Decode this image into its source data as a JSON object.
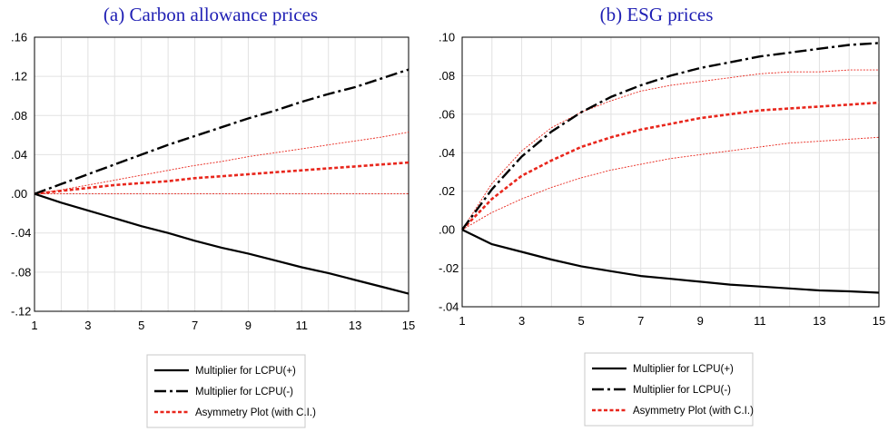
{
  "colors": {
    "title": "#1f1fb4",
    "multiplier_pos": "#000000",
    "multiplier_neg": "#000000",
    "asymmetry": "#e8261c",
    "ci": "#e8261c",
    "grid": "#e2e2e2"
  },
  "chart_data": [
    {
      "type": "line",
      "title": "(a) Carbon allowance prices",
      "x": [
        1,
        2,
        3,
        4,
        5,
        6,
        7,
        8,
        9,
        10,
        11,
        12,
        13,
        14,
        15
      ],
      "x_ticks": [
        1,
        3,
        5,
        7,
        9,
        11,
        13,
        15
      ],
      "x_tick_labels": [
        "1",
        "3",
        "5",
        "7",
        "9",
        "11",
        "13",
        "15"
      ],
      "xlim": [
        1,
        15
      ],
      "y_ticks": [
        -0.12,
        -0.08,
        -0.04,
        0.0,
        0.04,
        0.08,
        0.12,
        0.16
      ],
      "y_tick_labels": [
        "-.12",
        "-.08",
        "-.04",
        ".00",
        ".04",
        ".08",
        ".12",
        ".16"
      ],
      "ylim": [
        -0.12,
        0.16
      ],
      "grid": true,
      "series": [
        {
          "name": "Multiplier for LCPU(+)",
          "role": "multiplier_pos",
          "values": [
            0.0,
            -0.009,
            -0.017,
            -0.025,
            -0.033,
            -0.04,
            -0.048,
            -0.055,
            -0.061,
            -0.068,
            -0.075,
            -0.081,
            -0.088,
            -0.095,
            -0.102
          ]
        },
        {
          "name": "Multiplier for LCPU(-)",
          "role": "multiplier_neg",
          "values": [
            0.0,
            0.01,
            0.02,
            0.03,
            0.04,
            0.05,
            0.059,
            0.068,
            0.077,
            0.085,
            0.094,
            0.102,
            0.109,
            0.118,
            0.127
          ]
        },
        {
          "name": "Asymmetry Plot (with C.I.)",
          "role": "asymmetry",
          "values": [
            0.0,
            0.003,
            0.006,
            0.009,
            0.011,
            0.013,
            0.016,
            0.018,
            0.02,
            0.022,
            0.024,
            0.026,
            0.028,
            0.03,
            0.032
          ]
        },
        {
          "role": "ci_upper",
          "values": [
            0.0,
            0.004,
            0.009,
            0.014,
            0.019,
            0.024,
            0.029,
            0.033,
            0.038,
            0.042,
            0.046,
            0.05,
            0.054,
            0.058,
            0.063
          ]
        },
        {
          "role": "ci_lower",
          "values": [
            0.0,
            0.0,
            0.0,
            0.0,
            0.0,
            0.0,
            0.0,
            0.0,
            0.0,
            0.0,
            0.0,
            0.0,
            0.0,
            0.0,
            0.0
          ]
        }
      ],
      "legend": {
        "placement": "bottom-center",
        "entries": [
          "Multiplier for LCPU(+)",
          "Multiplier for LCPU(-)",
          "Asymmetry Plot (with C.I.)"
        ]
      }
    },
    {
      "type": "line",
      "title": "(b) ESG prices",
      "x": [
        1,
        2,
        3,
        4,
        5,
        6,
        7,
        8,
        9,
        10,
        11,
        12,
        13,
        14,
        15
      ],
      "x_ticks": [
        1,
        3,
        5,
        7,
        9,
        11,
        13,
        15
      ],
      "x_tick_labels": [
        "1",
        "3",
        "5",
        "7",
        "9",
        "11",
        "13",
        "15"
      ],
      "xlim": [
        1,
        15
      ],
      "y_ticks": [
        -0.04,
        -0.02,
        0.0,
        0.02,
        0.04,
        0.06,
        0.08,
        0.1
      ],
      "y_tick_labels": [
        "-.04",
        "-.02",
        ".00",
        ".02",
        ".04",
        ".06",
        ".08",
        ".10"
      ],
      "ylim": [
        -0.04,
        0.1
      ],
      "grid": true,
      "series": [
        {
          "name": "Multiplier for LCPU(+)",
          "role": "multiplier_pos",
          "values": [
            0.0,
            -0.0075,
            -0.0115,
            -0.0155,
            -0.019,
            -0.0215,
            -0.024,
            -0.0255,
            -0.027,
            -0.0285,
            -0.0295,
            -0.0305,
            -0.0315,
            -0.032,
            -0.0327
          ]
        },
        {
          "name": "Multiplier for LCPU(-)",
          "role": "multiplier_neg",
          "values": [
            0.0,
            0.021,
            0.038,
            0.051,
            0.061,
            0.069,
            0.075,
            0.08,
            0.084,
            0.087,
            0.09,
            0.092,
            0.094,
            0.096,
            0.097
          ]
        },
        {
          "name": "Asymmetry Plot (with C.I.)",
          "role": "asymmetry",
          "values": [
            0.0,
            0.016,
            0.028,
            0.036,
            0.043,
            0.048,
            0.052,
            0.055,
            0.058,
            0.06,
            0.062,
            0.063,
            0.064,
            0.065,
            0.066
          ]
        },
        {
          "role": "ci_upper",
          "values": [
            0.0,
            0.024,
            0.041,
            0.053,
            0.061,
            0.067,
            0.072,
            0.075,
            0.077,
            0.079,
            0.081,
            0.082,
            0.082,
            0.083,
            0.083
          ]
        },
        {
          "role": "ci_lower",
          "values": [
            0.0,
            0.009,
            0.016,
            0.022,
            0.027,
            0.031,
            0.034,
            0.037,
            0.039,
            0.041,
            0.043,
            0.045,
            0.046,
            0.047,
            0.048
          ]
        }
      ],
      "legend": {
        "placement": "bottom-center",
        "entries": [
          "Multiplier for LCPU(+)",
          "Multiplier for LCPU(-)",
          "Asymmetry Plot (with C.I.)"
        ]
      }
    }
  ]
}
